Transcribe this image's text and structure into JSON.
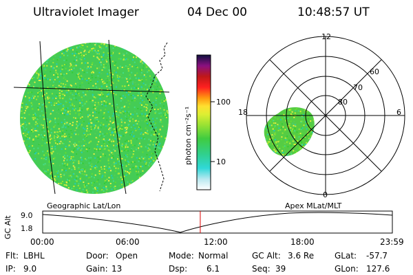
{
  "header": {
    "instrument": "Ultraviolet Imager",
    "date": "04 Dec 00",
    "time": "10:48:57 UT"
  },
  "colorbar": {
    "unit_label": "photon cm⁻²s⁻¹",
    "ticks": [
      "100",
      "10"
    ]
  },
  "geo_panel": {
    "label": "Geographic Lat/Lon"
  },
  "polar_panel": {
    "label": "Apex MLat/MLT",
    "mlt_labels": {
      "top": "12",
      "bottom": "0",
      "left": "18",
      "right": "6"
    },
    "lat_labels": [
      "60",
      "70",
      "80"
    ]
  },
  "timeline": {
    "axis_label": "GC Alt",
    "y_ticks": [
      "9.0",
      "1.8"
    ],
    "x_ticks": [
      "00:00",
      "06:00",
      "12:00",
      "18:00",
      "23:59"
    ],
    "current_time_fraction": 0.4507
  },
  "info": {
    "flt_label": "Flt:",
    "flt_value": "LBHL",
    "ip_label": "IP:",
    "ip_value": "9.0",
    "door_label": "Door:",
    "door_value": "Open",
    "gain_label": "Gain:",
    "gain_value": "13",
    "mode_label": "Mode:",
    "mode_value": "Normal",
    "dsp_label": "Dsp:",
    "dsp_value": "6.1",
    "gcalt_label": "GC Alt:",
    "gcalt_value": "3.6 Re",
    "seq_label": "Seq:",
    "seq_value": "39",
    "glat_label": "GLat:",
    "glat_value": "-57.7",
    "glon_label": "GLon:",
    "glon_value": "127.6"
  },
  "colors": {
    "speckle": [
      "#33cc33",
      "#66dd33",
      "#99e633",
      "#ccee33",
      "#eeee44",
      "#44dd88",
      "#22ccbb",
      "#55cc55"
    ],
    "marker": "#dd0000"
  }
}
